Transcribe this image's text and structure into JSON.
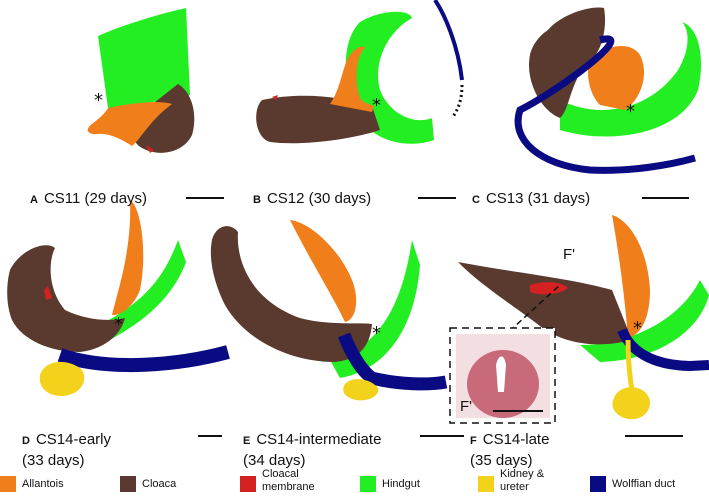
{
  "panels": [
    {
      "letter": "A",
      "stage": "CS11 (29 days)"
    },
    {
      "letter": "B",
      "stage": "CS12 (30 days)"
    },
    {
      "letter": "C",
      "stage": "CS13 (31 days)"
    },
    {
      "letter": "D",
      "stage": "CS14-early",
      "age": "(33 days)"
    },
    {
      "letter": "E",
      "stage": "CS14-intermediate",
      "age": "(34 days)"
    },
    {
      "letter": "F",
      "stage": "CS14-late",
      "age": "(35 days)"
    }
  ],
  "asterisk": "*",
  "section_marker": "F'",
  "legend": [
    {
      "label": "Allantois",
      "color": "#f07f1b"
    },
    {
      "label": "Cloaca",
      "color": "#5a3a2e"
    },
    {
      "label": "Cloacal membrane",
      "color": "#d42222"
    },
    {
      "label": "Hindgut",
      "color": "#22ee22"
    },
    {
      "label": "Kidney & ureter",
      "color": "#f2d21a"
    },
    {
      "label": "Wolffian duct",
      "color": "#0a0a82"
    }
  ],
  "colors": {
    "allantois": "#f07f1b",
    "cloaca": "#5a3a2e",
    "cloacal_membrane": "#d42222",
    "hindgut": "#22ee22",
    "kidney": "#f2d21a",
    "wolffian": "#0a0a82"
  }
}
